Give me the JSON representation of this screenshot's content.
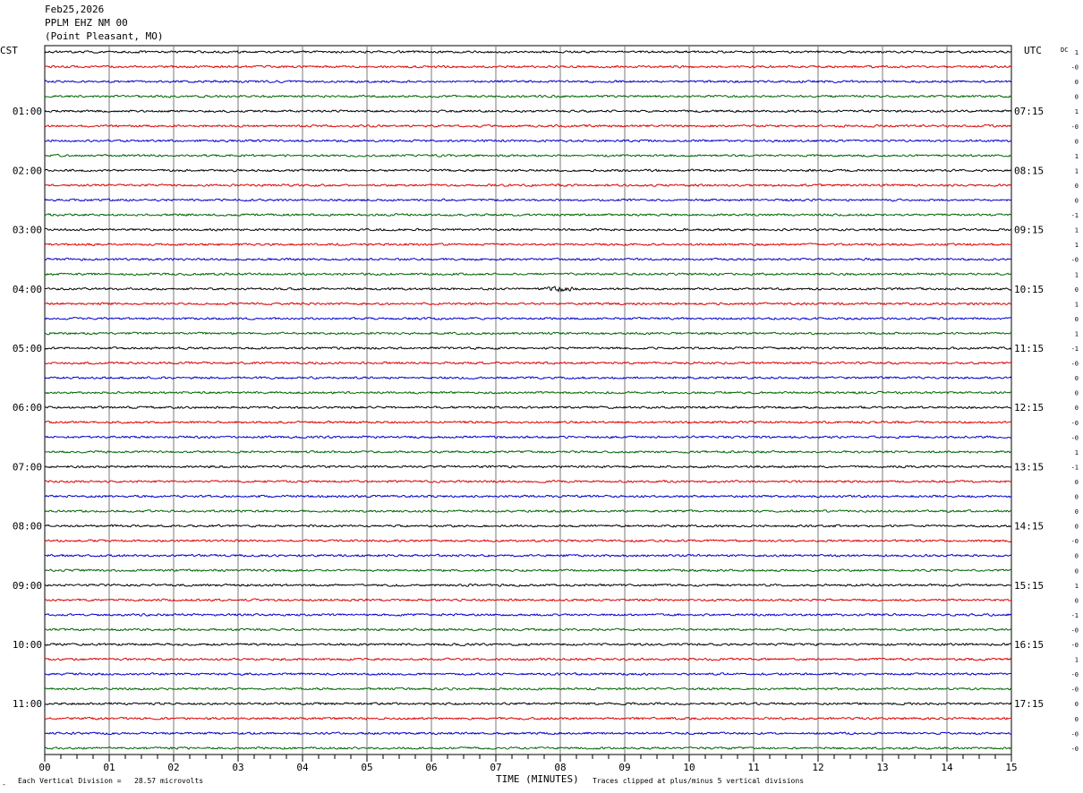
{
  "header": {
    "date": "Feb25,2026",
    "station": "PPLM EHZ NM 00",
    "location": "(Point Pleasant, MO)"
  },
  "left_zone": "CST",
  "right_zone": "UTC",
  "dc_label": "DC",
  "footer": {
    "mark": "-",
    "scale_text": "Each Vertical Division =   28.57 microvolts",
    "axis_title": "TIME (MINUTES)",
    "clip_text": "Traces clipped at plus/minus 5 vertical divisions"
  },
  "colors": {
    "trace_cycle": [
      "#000000",
      "#dd0000",
      "#0000cc",
      "#006600"
    ],
    "grid": "#7a7a7a"
  },
  "chart_data": {
    "type": "line",
    "chart_kind": "helicorder",
    "x": {
      "title": "TIME (MINUTES)",
      "range": [
        0,
        15
      ],
      "tick_labels": [
        "00",
        "01",
        "02",
        "03",
        "04",
        "05",
        "06",
        "07",
        "08",
        "09",
        "10",
        "11",
        "12",
        "13",
        "14",
        "15"
      ],
      "grid": true
    },
    "trace_count": 48,
    "minutes_per_trace": 15,
    "left_hour_labels": [
      "01:00",
      "02:00",
      "03:00",
      "04:00",
      "05:00",
      "06:00",
      "07:00",
      "08:00",
      "09:00",
      "10:00",
      "11:00"
    ],
    "right_hour_labels": [
      "07:15",
      "08:15",
      "09:15",
      "10:15",
      "11:15",
      "12:15",
      "13:15",
      "14:15",
      "15:15",
      "16:15",
      "17:15"
    ],
    "dc_offsets": [
      "1",
      "-0",
      "0",
      "0",
      "1",
      "-0",
      "0",
      "1",
      "1",
      "0",
      "0",
      "-1",
      "1",
      "1",
      "-0",
      "1",
      "0",
      "1",
      "0",
      "1",
      "-1",
      "-0",
      "0",
      "0",
      "0",
      "-0",
      "-0",
      "1",
      "-1",
      "0",
      "0",
      "0",
      "0",
      "-0",
      "0",
      "0",
      "1",
      "0",
      "-1",
      "-0",
      "-0",
      "1",
      "-0",
      "-0",
      "0",
      "0",
      "-0",
      "-0"
    ],
    "events": [
      {
        "trace": 16,
        "minute": 8.0,
        "label": ""
      }
    ]
  }
}
